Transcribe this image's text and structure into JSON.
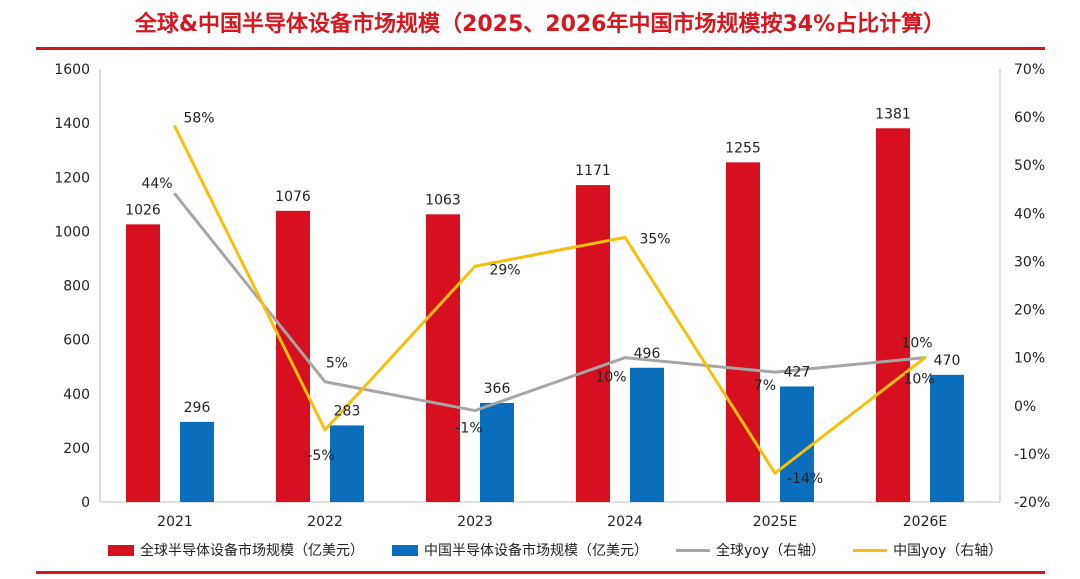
{
  "title": "全球&中国半导体设备市场规模（2025、2026年中国市场规模按34%占比计算）",
  "chart_data": {
    "type": "bar",
    "categories": [
      "2021",
      "2022",
      "2023",
      "2024",
      "2025E",
      "2026E"
    ],
    "series": [
      {
        "name": "全球半导体设备市场规模（亿美元）",
        "type": "bar",
        "axis": "left",
        "color": "#d7101f",
        "values": [
          1026,
          1076,
          1063,
          1171,
          1255,
          1381
        ]
      },
      {
        "name": "中国半导体设备市场规模（亿美元）",
        "type": "bar",
        "axis": "left",
        "color": "#0a6ebd",
        "values": [
          296,
          283,
          366,
          496,
          427,
          470
        ]
      },
      {
        "name": "全球yoy（右轴）",
        "type": "line",
        "axis": "right",
        "color": "#a6a6a6",
        "values": [
          44,
          5,
          -1,
          10,
          7,
          10
        ],
        "labels": [
          "44%",
          "5%",
          "-1%",
          "10%",
          "7%",
          "10%"
        ]
      },
      {
        "name": "中国yoy（右轴）",
        "type": "line",
        "axis": "right",
        "color": "#f5bf0a",
        "values": [
          58,
          -5,
          29,
          35,
          -14,
          10
        ],
        "labels": [
          "58%",
          "-5%",
          "29%",
          "35%",
          "-14%",
          "10%"
        ]
      }
    ],
    "y_left": {
      "min": 0,
      "max": 1600,
      "ticks": [
        "0",
        "200",
        "400",
        "600",
        "800",
        "1000",
        "1200",
        "1400",
        "1600"
      ]
    },
    "y_right": {
      "min": -20,
      "max": 70,
      "ticks": [
        "-20%",
        "-10%",
        "0%",
        "10%",
        "20%",
        "30%",
        "40%",
        "50%",
        "60%",
        "70%"
      ]
    },
    "legend": "bottom",
    "grid": false
  }
}
